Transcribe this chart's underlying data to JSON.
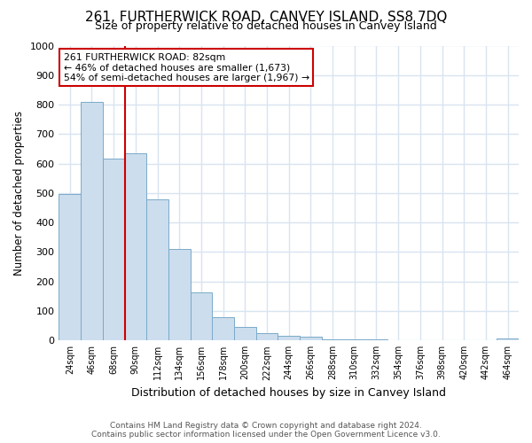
{
  "title": "261, FURTHERWICK ROAD, CANVEY ISLAND, SS8 7DQ",
  "subtitle": "Size of property relative to detached houses in Canvey Island",
  "xlabel": "Distribution of detached houses by size in Canvey Island",
  "ylabel": "Number of detached properties",
  "bar_color": "#ccdded",
  "bar_edge_color": "#7aaac8",
  "categories": [
    "24sqm",
    "46sqm",
    "68sqm",
    "90sqm",
    "112sqm",
    "134sqm",
    "156sqm",
    "178sqm",
    "200sqm",
    "222sqm",
    "244sqm",
    "266sqm",
    "288sqm",
    "310sqm",
    "332sqm",
    "354sqm",
    "376sqm",
    "398sqm",
    "420sqm",
    "442sqm",
    "464sqm"
  ],
  "values": [
    498,
    808,
    618,
    635,
    478,
    310,
    162,
    78,
    47,
    25,
    16,
    12,
    5,
    4,
    3,
    2,
    1,
    1,
    1,
    0,
    7
  ],
  "ylim": [
    0,
    1000
  ],
  "yticks": [
    0,
    100,
    200,
    300,
    400,
    500,
    600,
    700,
    800,
    900,
    1000
  ],
  "property_line_x": 2.5,
  "property_label": "261 FURTHERWICK ROAD: 82sqm",
  "annotation_line1": "← 46% of detached houses are smaller (1,673)",
  "annotation_line2": "54% of semi-detached houses are larger (1,967) →",
  "annotation_box_color": "#ffffff",
  "annotation_box_edge": "#cc0000",
  "vline_color": "#cc0000",
  "footer_line1": "Contains HM Land Registry data © Crown copyright and database right 2024.",
  "footer_line2": "Contains public sector information licensed under the Open Government Licence v3.0.",
  "background_color": "#ffffff",
  "grid_color": "#d8e4f0",
  "title_fontsize": 11,
  "subtitle_fontsize": 9
}
